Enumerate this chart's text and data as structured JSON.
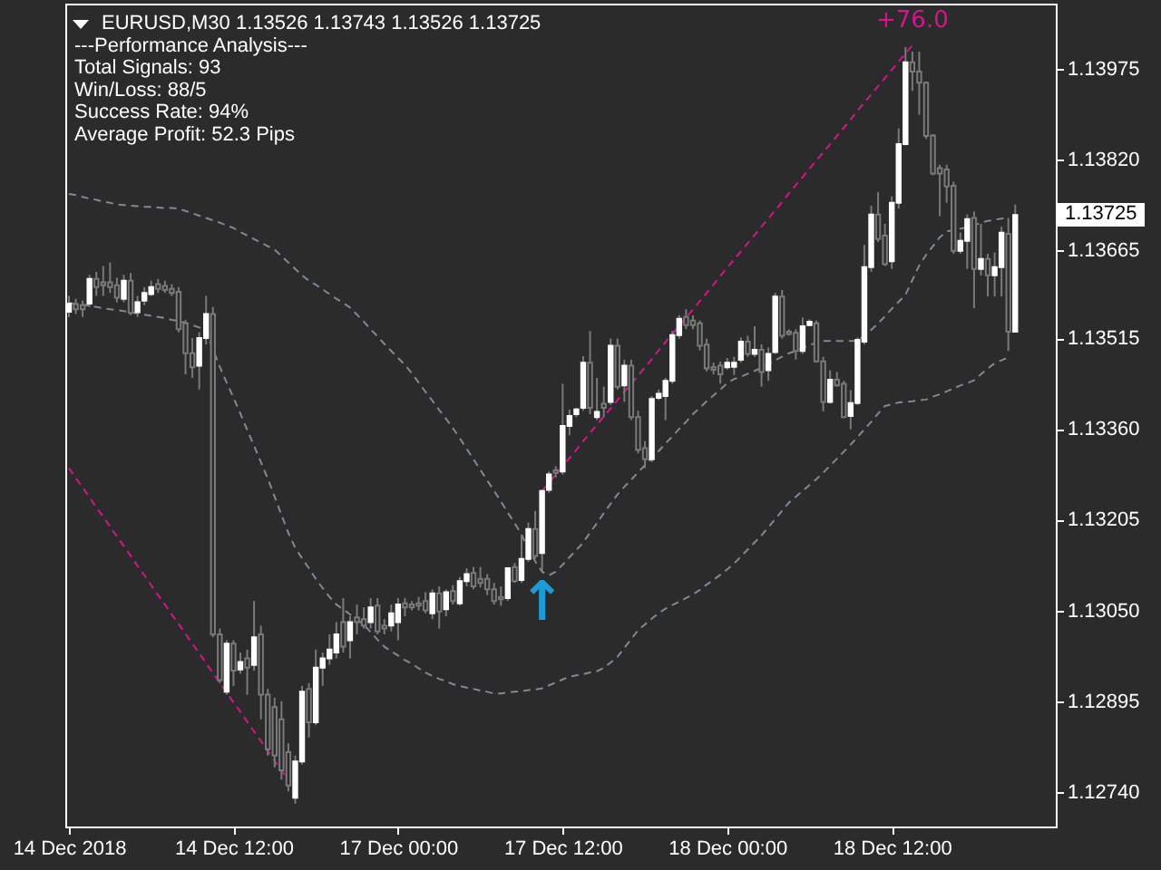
{
  "chart_data": {
    "type": "candlestick",
    "title": "EURUSD,M30 1.13526 1.13743 1.13526 1.13725",
    "annotations": [
      "---Performance Analysis---",
      "Total Signals: 93",
      "Win/Loss: 88/5",
      "Success Rate: 94%",
      "Average Profit: 52.3 Pips",
      "+76.0",
      "↑",
      "1.13725"
    ],
    "categories": [
      "14 Dec 2018",
      null,
      null,
      null,
      null,
      null,
      null,
      null,
      null,
      null,
      null,
      null,
      null,
      null,
      null,
      null,
      null,
      null,
      null,
      null,
      null,
      null,
      null,
      null,
      "14 Dec 12:00",
      null,
      null,
      null,
      null,
      null,
      null,
      null,
      null,
      null,
      null,
      null,
      null,
      null,
      null,
      null,
      null,
      null,
      null,
      null,
      null,
      null,
      null,
      null,
      "17 Dec 00:00",
      null,
      null,
      null,
      null,
      null,
      null,
      null,
      null,
      null,
      null,
      null,
      null,
      null,
      null,
      null,
      null,
      null,
      null,
      null,
      null,
      null,
      null,
      null,
      "17 Dec 12:00",
      null,
      null,
      null,
      null,
      null,
      null,
      null,
      null,
      null,
      null,
      null,
      null,
      null,
      null,
      null,
      null,
      null,
      null,
      null,
      null,
      null,
      null,
      null,
      "18 Dec 00:00",
      null,
      null,
      null,
      null,
      null,
      null,
      null,
      null,
      null,
      null,
      null,
      null,
      null,
      null,
      null,
      null,
      null,
      null,
      null,
      null,
      null,
      null,
      null,
      "18 Dec 12:00",
      null,
      null,
      null,
      null,
      null,
      null,
      null,
      null,
      null,
      null,
      null,
      null,
      null,
      null,
      null,
      null,
      null,
      null
    ],
    "ohlc": [
      [
        1.1356,
        1.13587,
        1.13551,
        1.13574
      ],
      [
        1.13573,
        1.13582,
        1.13556,
        1.13564
      ],
      [
        1.13571,
        1.13579,
        1.13551,
        1.13564
      ],
      [
        1.13574,
        1.13623,
        1.13568,
        1.13616
      ],
      [
        1.13616,
        1.13628,
        1.13587,
        1.13602
      ],
      [
        1.1361,
        1.13638,
        1.13587,
        1.13605
      ],
      [
        1.1361,
        1.13644,
        1.13592,
        1.13602
      ],
      [
        1.13605,
        1.13618,
        1.13576,
        1.13584
      ],
      [
        1.13582,
        1.13623,
        1.13576,
        1.13613
      ],
      [
        1.13613,
        1.13626,
        1.13554,
        1.13558
      ],
      [
        1.13559,
        1.13587,
        1.13551,
        1.13576
      ],
      [
        1.13579,
        1.13602,
        1.13571,
        1.13592
      ],
      [
        1.1359,
        1.13613,
        1.13587,
        1.13602
      ],
      [
        1.13607,
        1.13616,
        1.13592,
        1.13599
      ],
      [
        1.13604,
        1.13613,
        1.13592,
        1.13597
      ],
      [
        1.13599,
        1.13607,
        1.13587,
        1.13592
      ],
      [
        1.13594,
        1.13602,
        1.13525,
        1.1353
      ],
      [
        1.1354,
        1.13546,
        1.13453,
        1.13489
      ],
      [
        1.13489,
        1.13515,
        1.13447,
        1.13465
      ],
      [
        1.13468,
        1.13525,
        1.13427,
        1.13515
      ],
      [
        1.13515,
        1.13587,
        1.13504,
        1.13556
      ],
      [
        1.13556,
        1.13568,
        1.13004,
        1.13009
      ],
      [
        1.13009,
        1.13019,
        1.12926,
        1.12931
      ],
      [
        1.12911,
        1.12999,
        1.12906,
        1.12993
      ],
      [
        1.12993,
        1.12999,
        1.12921,
        1.12947
      ],
      [
        1.12949,
        1.12978,
        1.12942,
        1.12962
      ],
      [
        1.12968,
        1.12983,
        1.12906,
        1.12952
      ],
      [
        1.12957,
        1.13066,
        1.12947,
        1.13004
      ],
      [
        1.13009,
        1.13024,
        1.12864,
        1.12906
      ],
      [
        1.12906,
        1.12916,
        1.12802,
        1.12813
      ],
      [
        1.12885,
        1.12901,
        1.12782,
        1.12802
      ],
      [
        1.12864,
        1.12895,
        1.12761,
        1.12777
      ],
      [
        1.12808,
        1.12823,
        1.12741,
        1.12751
      ],
      [
        1.1273,
        1.12802,
        1.1272,
        1.12792
      ],
      [
        1.12792,
        1.12921,
        1.12787,
        1.12911
      ],
      [
        1.12916,
        1.12926,
        1.12833,
        1.12859
      ],
      [
        1.12859,
        1.12983,
        1.12854,
        1.12952
      ],
      [
        1.12952,
        1.12978,
        1.12921,
        1.12968
      ],
      [
        1.12968,
        1.13009,
        1.12957,
        1.12983
      ],
      [
        1.12978,
        1.1303,
        1.12968,
        1.13009
      ],
      [
        1.1303,
        1.13071,
        1.12978,
        1.12988
      ],
      [
        1.12999,
        1.1304,
        1.12968,
        1.1303
      ],
      [
        1.13038,
        1.1306,
        1.13009,
        1.1303
      ],
      [
        1.13035,
        1.13055,
        1.13019,
        1.13024
      ],
      [
        1.1303,
        1.13071,
        1.13019,
        1.13055
      ],
      [
        1.13058,
        1.13071,
        1.13009,
        1.13014
      ],
      [
        1.13024,
        1.13035,
        1.13009,
        1.13019
      ],
      [
        1.13024,
        1.1306,
        1.13014,
        1.13045
      ],
      [
        1.1303,
        1.13071,
        1.12999,
        1.1306
      ],
      [
        1.13062,
        1.13071,
        1.1304,
        1.13055
      ],
      [
        1.1306,
        1.13066,
        1.1305,
        1.13055
      ],
      [
        1.13062,
        1.13073,
        1.1305,
        1.13058
      ],
      [
        1.13066,
        1.13081,
        1.13045,
        1.1305
      ],
      [
        1.13045,
        1.13086,
        1.13035,
        1.13079
      ],
      [
        1.13079,
        1.13091,
        1.13019,
        1.13048
      ],
      [
        1.13052,
        1.13086,
        1.1304,
        1.13081
      ],
      [
        1.13083,
        1.13093,
        1.1306,
        1.13066
      ],
      [
        1.13062,
        1.13107,
        1.13058,
        1.131
      ],
      [
        1.131,
        1.13122,
        1.13091,
        1.13112
      ],
      [
        1.13114,
        1.13124,
        1.13086,
        1.13091
      ],
      [
        1.13104,
        1.13124,
        1.13089,
        1.13097
      ],
      [
        1.13104,
        1.13112,
        1.13076,
        1.13086
      ],
      [
        1.13086,
        1.13097,
        1.1306,
        1.13066
      ],
      [
        1.13073,
        1.13091,
        1.13058,
        1.13069
      ],
      [
        1.13071,
        1.13124,
        1.13066,
        1.13122
      ],
      [
        1.13124,
        1.13131,
        1.13097,
        1.131
      ],
      [
        1.13102,
        1.13179,
        1.13097,
        1.13138
      ],
      [
        1.13138,
        1.132,
        1.13133,
        1.13189
      ],
      [
        1.13189,
        1.1322,
        1.13138,
        1.13143
      ],
      [
        1.13148,
        1.13256,
        1.13117,
        1.13254
      ],
      [
        1.13256,
        1.13287,
        1.13251,
        1.13282
      ],
      [
        1.13289,
        1.13296,
        1.13277,
        1.13285
      ],
      [
        1.13287,
        1.13437,
        1.13282,
        1.13365
      ],
      [
        1.13365,
        1.13393,
        1.13349,
        1.13382
      ],
      [
        1.13385,
        1.13396,
        1.1338,
        1.13393
      ],
      [
        1.13396,
        1.13484,
        1.13391,
        1.13473
      ],
      [
        1.13473,
        1.13527,
        1.13385,
        1.13396
      ],
      [
        1.1338,
        1.13447,
        1.13375,
        1.13389
      ],
      [
        1.13403,
        1.13432,
        1.1338,
        1.13396
      ],
      [
        1.13406,
        1.13514,
        1.13401,
        1.13502
      ],
      [
        1.13502,
        1.13514,
        1.13427,
        1.13432
      ],
      [
        1.13434,
        1.13478,
        1.13406,
        1.13468
      ],
      [
        1.13468,
        1.13478,
        1.13375,
        1.1338
      ],
      [
        1.1338,
        1.13391,
        1.13318,
        1.13324
      ],
      [
        1.13327,
        1.13339,
        1.13293,
        1.13308
      ],
      [
        1.13308,
        1.13416,
        1.13303,
        1.13411
      ],
      [
        1.13413,
        1.13427,
        1.13409,
        1.1342
      ],
      [
        1.13416,
        1.13447,
        1.13375,
        1.13442
      ],
      [
        1.13442,
        1.13527,
        1.13437,
        1.1352
      ],
      [
        1.1352,
        1.13554,
        1.13514,
        1.13548
      ],
      [
        1.13551,
        1.13564,
        1.1353,
        1.13537
      ],
      [
        1.13545,
        1.13554,
        1.1353,
        1.13537
      ],
      [
        1.1354,
        1.13545,
        1.13494,
        1.13502
      ],
      [
        1.13504,
        1.13514,
        1.13458,
        1.13463
      ],
      [
        1.13465,
        1.13473,
        1.13453,
        1.13461
      ],
      [
        1.13468,
        1.13475,
        1.13437,
        1.13453
      ],
      [
        1.13465,
        1.13481,
        1.13461,
        1.13473
      ],
      [
        1.13466,
        1.13483,
        1.13452,
        1.13473
      ],
      [
        1.13478,
        1.13516,
        1.13473,
        1.13509
      ],
      [
        1.13509,
        1.13519,
        1.13483,
        1.13488
      ],
      [
        1.13488,
        1.13535,
        1.13483,
        1.13495
      ],
      [
        1.13495,
        1.13504,
        1.13432,
        1.13457
      ],
      [
        1.1346,
        1.13499,
        1.13442,
        1.13488
      ],
      [
        1.13491,
        1.13592,
        1.13488,
        1.13586
      ],
      [
        1.13586,
        1.13597,
        1.13514,
        1.13519
      ],
      [
        1.13526,
        1.1353,
        1.13519,
        1.13522
      ],
      [
        1.13524,
        1.1353,
        1.13478,
        1.13493
      ],
      [
        1.13493,
        1.1355,
        1.13488,
        1.13535
      ],
      [
        1.13537,
        1.13547,
        1.13535,
        1.13543
      ],
      [
        1.1354,
        1.13545,
        1.13473,
        1.13475
      ],
      [
        1.13475,
        1.13483,
        1.1339,
        1.13406
      ],
      [
        1.13406,
        1.1346,
        1.13403,
        1.13444
      ],
      [
        1.13444,
        1.13457,
        1.13432,
        1.13434
      ],
      [
        1.13437,
        1.13442,
        1.13378,
        1.1338
      ],
      [
        1.13382,
        1.13426,
        1.13359,
        1.13404
      ],
      [
        1.13404,
        1.13516,
        1.13401,
        1.13512
      ],
      [
        1.13509,
        1.13674,
        1.13504,
        1.13636
      ],
      [
        1.13636,
        1.13741,
        1.13628,
        1.13726
      ],
      [
        1.13726,
        1.13764,
        1.13679,
        1.13684
      ],
      [
        1.1369,
        1.1371,
        1.13638,
        1.13641
      ],
      [
        1.13646,
        1.13757,
        1.13633,
        1.13746
      ],
      [
        1.13746,
        1.13873,
        1.13736,
        1.13846
      ],
      [
        1.13846,
        1.14012,
        1.13844,
        1.13986
      ],
      [
        1.13986,
        1.14004,
        1.13937,
        1.1397
      ],
      [
        1.1397,
        1.14004,
        1.13896,
        1.13951
      ],
      [
        1.13951,
        1.13953,
        1.13855,
        1.1386
      ],
      [
        1.13861,
        1.13863,
        1.13793,
        1.13796
      ],
      [
        1.13805,
        1.13811,
        1.13723,
        1.13796
      ],
      [
        1.13803,
        1.13811,
        1.13746,
        1.13774
      ],
      [
        1.13775,
        1.13782,
        1.13659,
        1.13664
      ],
      [
        1.13664,
        1.13695,
        1.13659,
        1.13681
      ],
      [
        1.13681,
        1.13726,
        1.13633,
        1.13718
      ],
      [
        1.1372,
        1.13731,
        1.13566,
        1.13633
      ],
      [
        1.13633,
        1.1371,
        1.13622,
        1.1365
      ],
      [
        1.1365,
        1.13659,
        1.13586,
        1.13622
      ],
      [
        1.13622,
        1.13661,
        1.13586,
        1.13636
      ],
      [
        1.13636,
        1.13705,
        1.13586,
        1.13695
      ],
      [
        1.13693,
        1.1372,
        1.13493,
        1.13526
      ],
      [
        1.13526,
        1.13743,
        1.13526,
        1.13725
      ]
    ],
    "color": "#7a7a7a",
    "colors": [
      "#ffffff",
      "#7a7a7a",
      "#7a7a7a",
      "#ffffff",
      "#7a7a7a",
      "#7a7a7a",
      "#7a7a7a",
      "#7a7a7a",
      "#ffffff",
      "#7a7a7a",
      "#ffffff",
      "#ffffff",
      "#ffffff",
      "#7a7a7a",
      "#7a7a7a",
      "#7a7a7a",
      "#7a7a7a",
      "#7a7a7a",
      "#7a7a7a",
      "#ffffff",
      "#ffffff",
      "#7a7a7a",
      "#7a7a7a",
      "#ffffff",
      "#7a7a7a",
      "#ffffff",
      "#7a7a7a",
      "#ffffff",
      "#7a7a7a",
      "#7a7a7a",
      "#7a7a7a",
      "#7a7a7a",
      "#7a7a7a",
      "#ffffff",
      "#ffffff",
      "#7a7a7a",
      "#ffffff",
      "#ffffff",
      "#ffffff",
      "#ffffff",
      "#7a7a7a",
      "#ffffff",
      "#7a7a7a",
      "#7a7a7a",
      "#ffffff",
      "#7a7a7a",
      "#7a7a7a",
      "#ffffff",
      "#ffffff",
      "#7a7a7a",
      "#7a7a7a",
      "#7a7a7a",
      "#7a7a7a",
      "#ffffff",
      "#7a7a7a",
      "#ffffff",
      "#7a7a7a",
      "#ffffff",
      "#ffffff",
      "#7a7a7a",
      "#7a7a7a",
      "#7a7a7a",
      "#7a7a7a",
      "#7a7a7a",
      "#ffffff",
      "#7a7a7a",
      "#ffffff",
      "#ffffff",
      "#7a7a7a",
      "#ffffff",
      "#ffffff",
      "#7a7a7a",
      "#ffffff",
      "#ffffff",
      "#ffffff",
      "#ffffff",
      "#7a7a7a",
      "#ffffff",
      "#7a7a7a",
      "#ffffff",
      "#7a7a7a",
      "#ffffff",
      "#7a7a7a",
      "#7a7a7a",
      "#7a7a7a",
      "#ffffff",
      "#ffffff",
      "#ffffff",
      "#ffffff",
      "#ffffff",
      "#7a7a7a",
      "#7a7a7a",
      "#7a7a7a",
      "#7a7a7a",
      "#7a7a7a",
      "#7a7a7a",
      "#ffffff",
      "#ffffff",
      "#ffffff",
      "#7a7a7a",
      "#ffffff",
      "#7a7a7a",
      "#ffffff",
      "#ffffff",
      "#7a7a7a",
      "#7a7a7a",
      "#7a7a7a",
      "#ffffff",
      "#ffffff",
      "#7a7a7a",
      "#7a7a7a",
      "#ffffff",
      "#7a7a7a",
      "#7a7a7a",
      "#ffffff",
      "#ffffff",
      "#ffffff",
      "#ffffff",
      "#7a7a7a",
      "#7a7a7a",
      "#ffffff",
      "#ffffff",
      "#ffffff",
      "#7a7a7a",
      "#7a7a7a",
      "#7a7a7a",
      "#7a7a7a",
      "#7a7a7a",
      "#7a7a7a",
      "#7a7a7a",
      "#ffffff",
      "#ffffff",
      "#7a7a7a",
      "#ffffff",
      "#7a7a7a",
      "#ffffff",
      "#ffffff",
      "#7a7a7a",
      "#ffffff"
    ],
    "ylim": [
      1.12681,
      1.14086
    ],
    "yticks": [
      {
        "value": 1.1274,
        "label": "1.12740"
      },
      1.12895,
      {
        "value": 1.1305,
        "label": "1.13050"
      },
      1.13205,
      {
        "value": 1.1336,
        "label": "1.13360"
      },
      1.13515,
      1.13665,
      {
        "value": 1.1382,
        "label": "1.13820"
      },
      1.13975
    ],
    "series": [
      {
        "type": "line",
        "color": "#7d8a99",
        "line_style": "dashed",
        "values": [
          1.13761,
          1.13759,
          1.13756,
          1.13753,
          1.13751,
          1.13748,
          1.13746,
          1.13743,
          1.13742,
          1.13741,
          1.1374,
          1.13739,
          1.13739,
          1.13738,
          1.13737,
          1.13737,
          1.13736,
          1.13732,
          1.13728,
          1.13724,
          1.1372,
          1.13716,
          1.13712,
          1.13707,
          1.13703,
          1.13696,
          1.1369,
          1.13684,
          1.13678,
          1.13672,
          1.13666,
          1.13655,
          1.13644,
          1.13633,
          1.13622,
          1.13613,
          1.13606,
          1.13598,
          1.1359,
          1.13582,
          1.13575,
          1.13567,
          1.13555,
          1.13543,
          1.1353,
          1.13518,
          1.13505,
          1.13493,
          1.13481,
          1.13469,
          1.13455,
          1.13439,
          1.13423,
          1.13408,
          1.13392,
          1.13377,
          1.13361,
          1.13344,
          1.13326,
          1.13308,
          1.1329,
          1.13272,
          1.13254,
          1.13236,
          1.13217,
          1.13199,
          1.1318,
          1.13154,
          1.13134,
          1.13116,
          1.1311,
          1.13116,
          1.13128,
          1.13141,
          1.13153,
          1.13166,
          1.13183,
          1.13199,
          1.13216,
          1.13232,
          1.13248,
          1.13261,
          1.13273,
          1.13286,
          1.13298,
          1.1331,
          1.13322,
          1.13335,
          1.13347,
          1.1336,
          1.13372,
          1.13385,
          1.13396,
          1.13407,
          1.13417,
          1.13427,
          1.13438,
          1.13445,
          1.13449,
          1.13454,
          1.13459,
          1.13464,
          1.1347,
          1.13477,
          1.13483,
          1.13489,
          1.13493,
          1.13498,
          1.13503,
          1.13507,
          1.1351,
          1.1351,
          1.1351,
          1.1351,
          1.1351,
          1.1351,
          1.13519,
          1.13529,
          1.1354,
          1.13552,
          1.13565,
          1.13577,
          1.13589,
          1.13614,
          1.13639,
          1.13657,
          1.13672,
          1.13687,
          1.13697,
          1.13699,
          1.13702,
          1.13704,
          1.13707,
          1.13712,
          1.13715,
          1.13717,
          1.13719,
          1.13721,
          null
        ]
      },
      {
        "type": "line",
        "color": "#7d8a99",
        "line_style": "dashed",
        "values": [
          1.13575,
          1.13573,
          1.13572,
          1.1357,
          1.13568,
          1.13566,
          1.13564,
          1.13563,
          1.13561,
          1.13559,
          1.13557,
          1.13555,
          1.13553,
          1.13551,
          1.13549,
          1.13546,
          1.13544,
          1.13541,
          1.13537,
          1.13533,
          1.13529,
          1.13496,
          1.13466,
          1.13439,
          1.13413,
          1.13386,
          1.13358,
          1.13331,
          1.13303,
          1.13275,
          1.13244,
          1.13213,
          1.13182,
          1.13157,
          1.13139,
          1.13122,
          1.13104,
          1.13088,
          1.13073,
          1.1306,
          1.13052,
          1.13043,
          1.13035,
          1.13025,
          1.13013,
          1.13,
          1.12988,
          1.1298,
          1.12973,
          1.12965,
          1.12959,
          1.12951,
          1.12944,
          1.12938,
          1.12933,
          1.12929,
          1.12924,
          1.12921,
          1.12918,
          1.12916,
          1.12913,
          1.12911,
          1.12908,
          1.12908,
          1.1291,
          1.12911,
          1.12912,
          1.12914,
          1.12915,
          1.12917,
          1.12922,
          1.12927,
          1.12932,
          1.12937,
          1.12939,
          1.12941,
          1.12944,
          1.12946,
          1.12952,
          1.12961,
          1.12971,
          1.12986,
          1.13001,
          1.13016,
          1.13026,
          1.13036,
          1.13045,
          1.13053,
          1.13059,
          1.13065,
          1.13071,
          1.13077,
          1.13085,
          1.13094,
          1.13102,
          1.13111,
          1.1312,
          1.1313,
          1.13142,
          1.13154,
          1.13166,
          1.13178,
          1.13192,
          1.13206,
          1.1322,
          1.13234,
          1.13244,
          1.13254,
          1.13264,
          1.13274,
          1.13285,
          1.13297,
          1.13309,
          1.13321,
          1.13333,
          1.13346,
          1.13359,
          1.13372,
          1.13386,
          1.13399,
          1.13402,
          1.13405,
          1.13406,
          1.13407,
          1.13409,
          1.1341,
          1.13415,
          1.13419,
          1.13424,
          1.13429,
          1.13434,
          1.13438,
          1.13443,
          1.13453,
          1.13463,
          1.13472,
          1.13477,
          1.13482,
          null
        ]
      },
      {
        "type": "line",
        "color": "#d4168c",
        "line_style": "dashed",
        "values": [
          1.13293,
          1.13276,
          1.1326,
          1.13243,
          1.13226,
          1.1321,
          1.13193,
          1.13176,
          1.1316,
          1.13143,
          1.13126,
          1.1311,
          1.13093,
          1.13076,
          1.1306,
          1.13043,
          1.13027,
          1.1301,
          1.12993,
          1.12977,
          1.1296,
          1.12943,
          1.12927,
          1.1291,
          1.12893,
          1.12877,
          1.1286,
          1.12843,
          1.12827,
          1.1281,
          1.12793,
          1.12777,
          1.1276,
          null,
          null,
          null,
          null,
          null,
          null,
          null,
          null,
          null,
          null,
          null,
          null,
          null,
          null,
          null,
          null,
          null,
          null,
          null,
          null,
          null,
          null,
          null,
          null,
          null,
          null,
          null,
          null,
          null,
          null,
          null,
          null,
          null,
          null,
          null,
          null,
          null,
          null,
          null,
          null,
          null,
          null,
          null,
          null,
          null,
          null,
          null,
          null,
          null,
          null,
          null,
          null,
          null,
          null,
          null,
          null,
          null,
          null,
          null,
          null,
          null,
          null,
          null,
          null,
          null,
          null,
          null,
          null,
          null,
          null,
          null,
          null,
          null,
          null,
          null,
          null,
          null,
          null,
          null,
          null,
          null,
          null,
          null,
          null,
          null,
          null,
          null,
          null,
          null,
          null,
          null,
          null,
          null,
          null,
          null,
          null,
          null,
          null,
          null,
          null,
          null,
          null,
          null,
          null,
          null,
          null
        ]
      },
      {
        "type": "line",
        "color": "#d4168c",
        "line_style": "dashed",
        "values": [
          null,
          null,
          null,
          null,
          null,
          null,
          null,
          null,
          null,
          null,
          null,
          null,
          null,
          null,
          null,
          null,
          null,
          null,
          null,
          null,
          null,
          null,
          null,
          null,
          null,
          null,
          null,
          null,
          null,
          null,
          null,
          null,
          null,
          null,
          null,
          null,
          null,
          null,
          null,
          null,
          null,
          null,
          null,
          null,
          null,
          null,
          null,
          null,
          null,
          null,
          null,
          null,
          null,
          null,
          null,
          null,
          null,
          null,
          null,
          null,
          null,
          null,
          null,
          null,
          null,
          null,
          null,
          null,
          null,
          1.13254,
          1.13268,
          1.13282,
          1.13296,
          1.1331,
          1.13324,
          1.13339,
          1.13353,
          1.13367,
          1.13381,
          1.13395,
          1.13409,
          1.13423,
          1.13437,
          1.13451,
          1.13465,
          1.13479,
          1.13494,
          1.13508,
          1.13522,
          1.13536,
          1.1355,
          1.13564,
          1.13578,
          1.13592,
          1.13606,
          1.13621,
          1.13635,
          1.13649,
          1.13663,
          1.13677,
          1.13691,
          1.13705,
          1.13719,
          1.13733,
          1.13747,
          1.13762,
          1.13776,
          1.1379,
          1.13804,
          1.13818,
          1.13832,
          1.13846,
          1.1386,
          1.13874,
          1.13888,
          1.13903,
          1.13917,
          1.13931,
          1.13945,
          1.13959,
          1.13973,
          1.13987,
          1.14001,
          1.14015,
          null,
          null,
          null,
          null,
          null,
          null,
          null,
          null,
          null,
          null,
          null,
          null,
          null,
          null,
          null
        ]
      }
    ]
  }
}
